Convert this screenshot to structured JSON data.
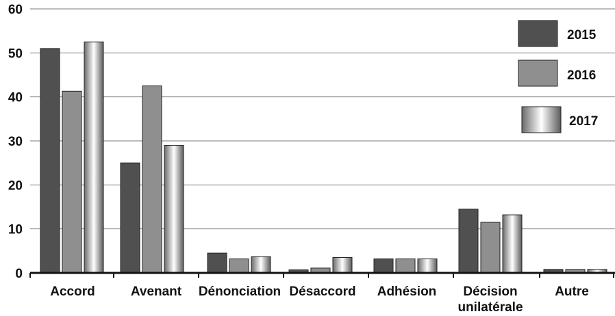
{
  "chart_data": {
    "type": "bar",
    "categories": [
      "Accord",
      "Avenant",
      "Dénonciation",
      "Désaccord",
      "Adhésion",
      "Décision unilatérale",
      "Autre"
    ],
    "category_lines": [
      [
        "Accord"
      ],
      [
        "Avenant"
      ],
      [
        "Dénonciation"
      ],
      [
        "Désaccord"
      ],
      [
        "Adhésion"
      ],
      [
        "Décision",
        "unilatérale"
      ],
      [
        "Autre"
      ]
    ],
    "series": [
      {
        "name": "2015",
        "values": [
          51,
          25,
          4.5,
          0.7,
          3.2,
          14.5,
          0.8
        ]
      },
      {
        "name": "2016",
        "values": [
          41.3,
          42.5,
          3.2,
          1.1,
          3.2,
          11.5,
          0.8
        ]
      },
      {
        "name": "2017",
        "values": [
          52.5,
          29,
          3.7,
          3.5,
          3.2,
          13.2,
          0.8
        ]
      }
    ],
    "series_colors": [
      "#505050",
      "#8f8f8f",
      "gradient-silver"
    ],
    "ylim": [
      0,
      60
    ],
    "yticks": [
      0,
      10,
      20,
      30,
      40,
      50,
      60
    ],
    "grid": true,
    "legend_position": "top-right",
    "title": "",
    "xlabel": "",
    "ylabel": ""
  }
}
